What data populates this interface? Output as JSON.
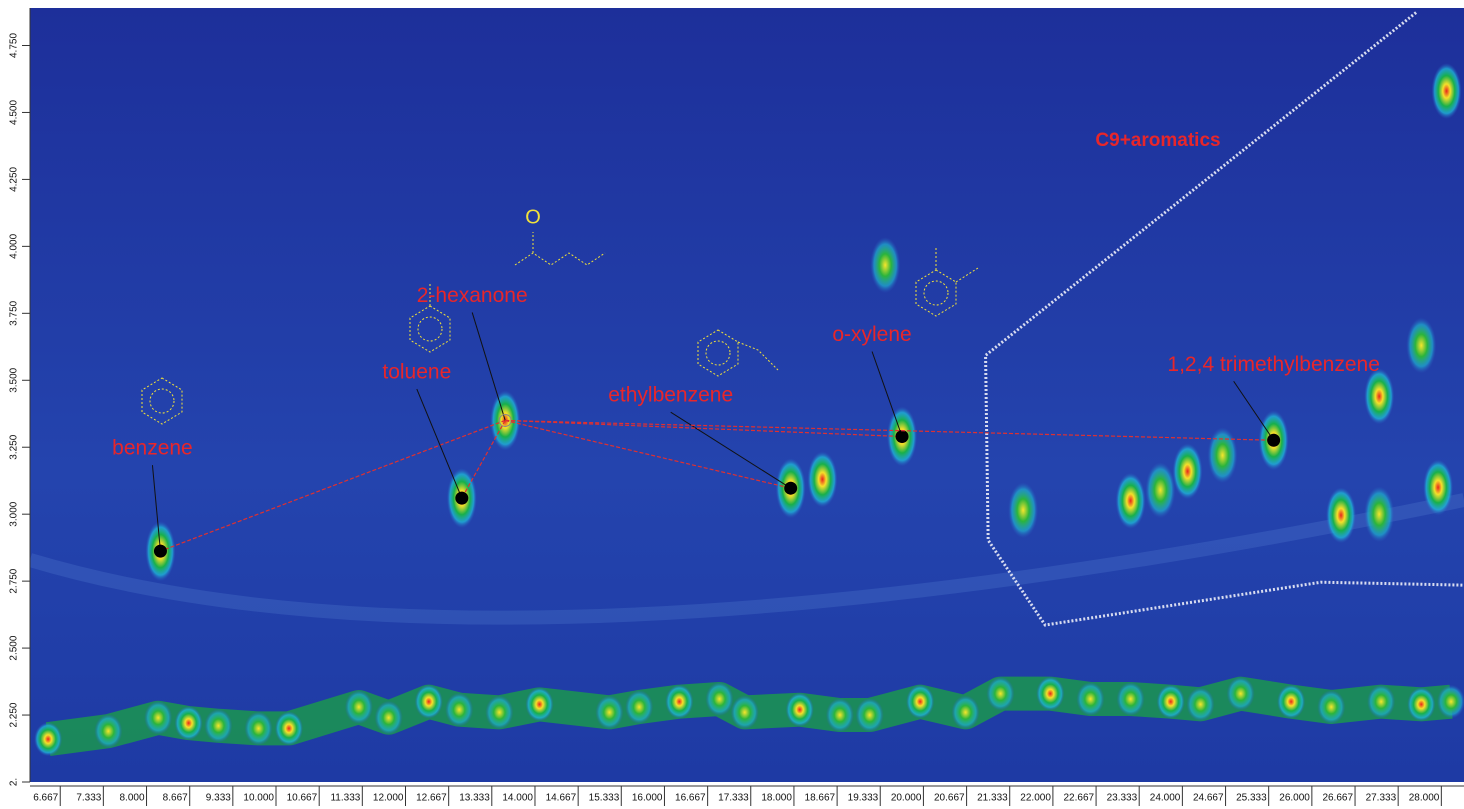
{
  "chart_data": {
    "type": "contour",
    "xlim": [
      6.2,
      28.35
    ],
    "ylim": [
      2.0,
      4.89
    ],
    "xticks": [
      6.667,
      7.333,
      {
        "value": 8,
        "label": "8.000"
      },
      8.667,
      9.333,
      {
        "value": 10,
        "label": "10.000"
      },
      10.667,
      11.333,
      {
        "value": 12,
        "label": "12.000"
      },
      12.667,
      13.333,
      {
        "value": 14,
        "label": "14.000"
      },
      14.667,
      15.333,
      {
        "value": 16,
        "label": "16.000"
      },
      16.667,
      17.333,
      {
        "value": 18,
        "label": "18.000"
      },
      18.667,
      19.333,
      {
        "value": 20,
        "label": "20.000"
      },
      20.667,
      21.333,
      {
        "value": 22,
        "label": "22.000"
      },
      22.667,
      23.333,
      {
        "value": 24,
        "label": "24.000"
      },
      24.667,
      25.333,
      {
        "value": 26,
        "label": "26.000"
      },
      26.667,
      27.333,
      {
        "value": 28,
        "label": "28.000"
      }
    ],
    "yticks": [
      {
        "value": 2,
        "label": "2."
      },
      {
        "value": 2.25,
        "label": "2.250"
      },
      {
        "value": 2.5,
        "label": "2.500"
      },
      {
        "value": 2.75,
        "label": "2.750"
      },
      {
        "value": 3,
        "label": "3.000"
      },
      {
        "value": 3.25,
        "label": "3.250"
      },
      {
        "value": 3.5,
        "label": "3.500"
      },
      {
        "value": 3.75,
        "label": "3.750"
      },
      {
        "value": 4,
        "label": "4.000"
      },
      {
        "value": 4.25,
        "label": "4.250"
      },
      {
        "value": 4.5,
        "label": "4.500"
      },
      {
        "value": 4.75,
        "label": "4.750"
      }
    ],
    "peaks": {
      "x": [
        18.44,
        21.54,
        23.2,
        23.66,
        24.08,
        24.62,
        26.45,
        27.04,
        27.04,
        27.69,
        27.95,
        19.41,
        28.08
      ],
      "y": [
        3.13,
        3.015,
        3.05,
        3.09,
        3.16,
        3.22,
        2.996,
        3.0,
        3.44,
        3.63,
        3.1,
        3.93,
        4.58
      ]
    },
    "baseline_peaks": {
      "x": [
        6.48,
        7.41,
        8.18,
        8.65,
        9.11,
        9.73,
        10.2,
        11.28,
        11.74,
        12.36,
        12.83,
        13.45,
        14.07,
        15.15,
        15.61,
        16.23,
        16.85,
        17.24,
        18.09,
        18.71,
        19.17,
        19.95,
        20.65,
        21.19,
        21.96,
        22.58,
        23.2,
        23.82,
        24.28,
        24.9,
        25.68,
        26.3,
        27.07,
        27.69,
        28.15
      ],
      "y": [
        2.16,
        2.19,
        2.24,
        2.22,
        2.21,
        2.2,
        2.2,
        2.28,
        2.24,
        2.3,
        2.27,
        2.26,
        2.29,
        2.26,
        2.28,
        2.3,
        2.31,
        2.26,
        2.27,
        2.25,
        2.25,
        2.3,
        2.26,
        2.33,
        2.33,
        2.31,
        2.31,
        2.3,
        2.29,
        2.33,
        2.3,
        2.28,
        2.3,
        2.29,
        2.3
      ]
    },
    "compounds": [
      {
        "name": "benzene",
        "x": 8.215,
        "y": 2.862
      },
      {
        "name": "toluene",
        "x": 12.87,
        "y": 3.06
      },
      {
        "name": "2-hexanone",
        "x": 13.54,
        "y": 3.35,
        "atom": "O"
      },
      {
        "name": "ethylbenzene",
        "x": 17.95,
        "y": 3.097
      },
      {
        "name": "o-xylene",
        "x": 19.67,
        "y": 3.29
      },
      {
        "name": "1,2,4 trimethylbenzene",
        "x": 25.41,
        "y": 3.276
      }
    ],
    "region": {
      "label": "C9+aromatics",
      "x": [
        27.61,
        20.96,
        21.0,
        21.88,
        26.14,
        28.35
      ],
      "y": [
        4.873,
        3.593,
        2.903,
        2.586,
        2.746,
        2.735
      ]
    }
  }
}
